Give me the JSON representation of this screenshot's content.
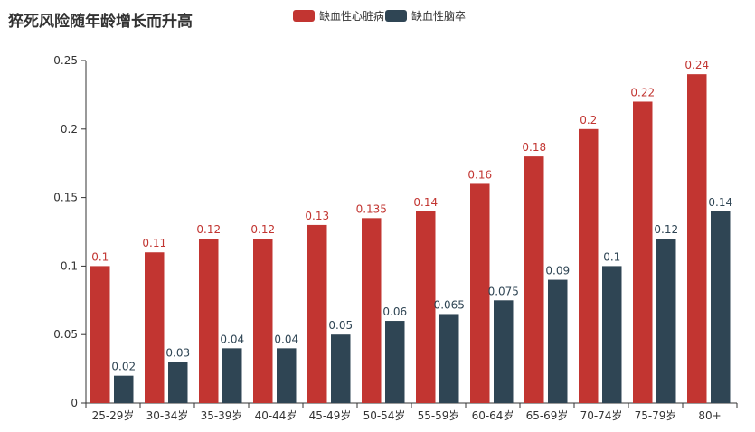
{
  "chart_data": {
    "type": "bar",
    "title": "猝死风险随年龄增长而升高",
    "categories": [
      "25-29岁",
      "30-34岁",
      "35-39岁",
      "40-44岁",
      "45-49岁",
      "50-54岁",
      "55-59岁",
      "60-64岁",
      "65-69岁",
      "70-74岁",
      "75-79岁",
      "80+"
    ],
    "series": [
      {
        "name": "缺血性心脏病",
        "color": "#c23531",
        "values": [
          0.1,
          0.11,
          0.12,
          0.12,
          0.13,
          0.135,
          0.14,
          0.16,
          0.18,
          0.2,
          0.22,
          0.24
        ]
      },
      {
        "name": "缺血性脑卒",
        "color": "#2f4554",
        "values": [
          0.02,
          0.03,
          0.04,
          0.04,
          0.05,
          0.06,
          0.065,
          0.075,
          0.09,
          0.1,
          0.12,
          0.14
        ]
      }
    ],
    "yticks": [
      "0",
      "0.05",
      "0.1",
      "0.15",
      "0.2",
      "0.25"
    ],
    "ylim": [
      0,
      0.25
    ],
    "xlabel": "",
    "ylabel": "",
    "legend_position": "top-center",
    "grid": false
  }
}
